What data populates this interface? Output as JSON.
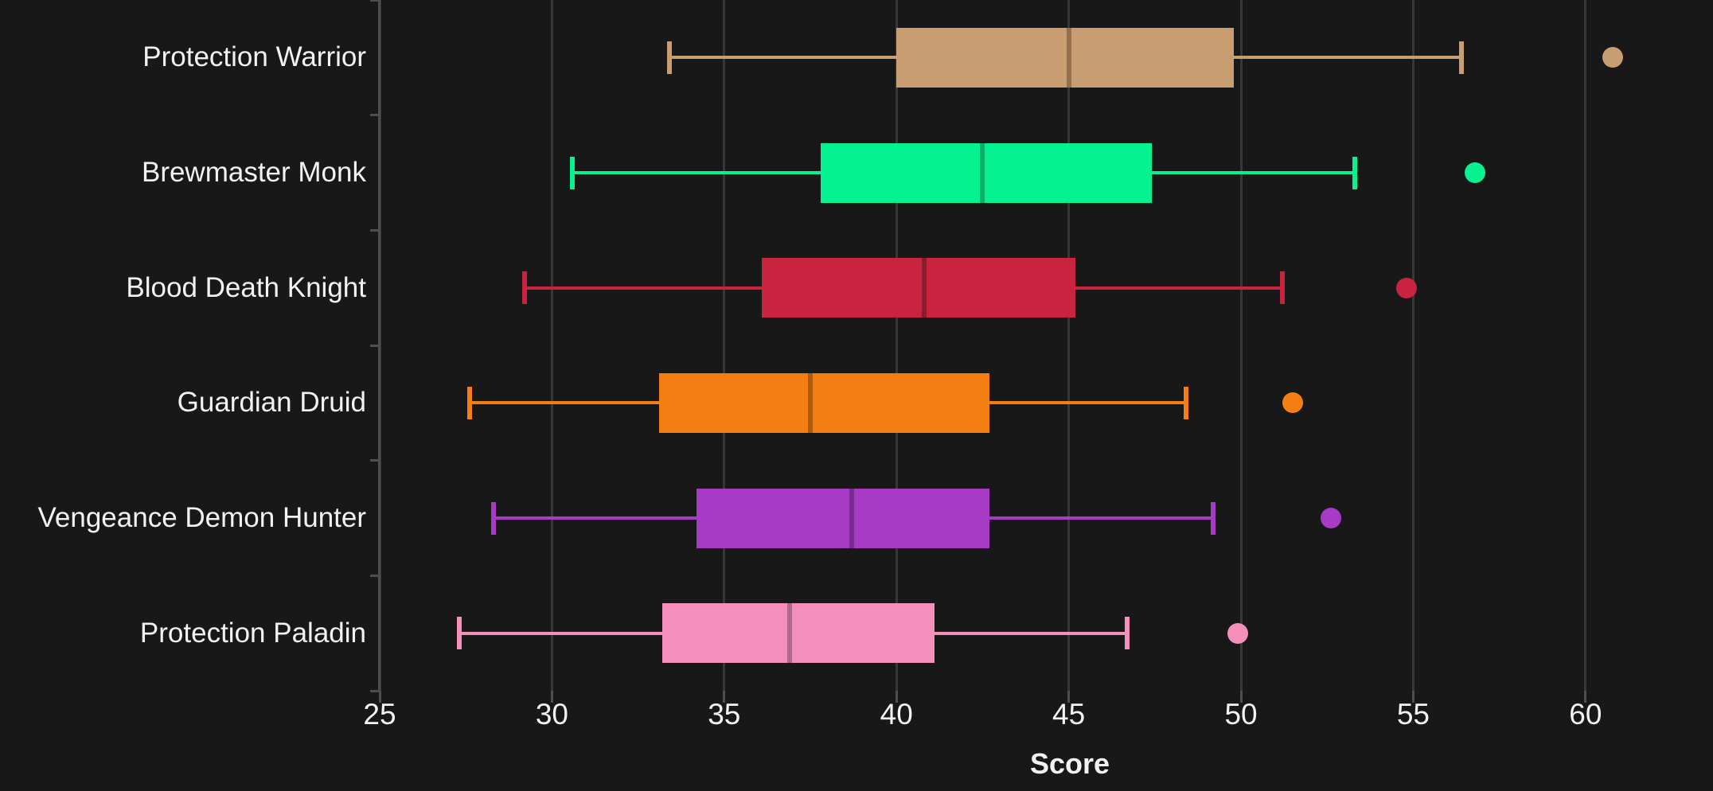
{
  "chart_data": {
    "type": "boxplot",
    "orientation": "horizontal",
    "title": "",
    "xlabel": "Score",
    "ylabel": "",
    "x_ticks": [
      25,
      30,
      35,
      40,
      45,
      50,
      55,
      60
    ],
    "xlim": [
      25,
      63.7
    ],
    "grid": true,
    "legend": "none",
    "categories": [
      "Protection Warrior",
      "Brewmaster Monk",
      "Blood Death Knight",
      "Guardian Druid",
      "Vengeance Demon Hunter",
      "Protection Paladin"
    ],
    "series": [
      {
        "label": "Protection Warrior",
        "color": "#C99D72",
        "median_color": "#93704E",
        "whisker_low": 33.4,
        "q1": 40.0,
        "median": 45.0,
        "q3": 49.8,
        "whisker_high": 56.4,
        "outliers": [
          60.8
        ]
      },
      {
        "label": "Brewmaster Monk",
        "color": "#06F291",
        "median_color": "#0CAE68",
        "whisker_low": 30.6,
        "q1": 37.8,
        "median": 42.5,
        "q3": 47.4,
        "whisker_high": 53.3,
        "outliers": [
          56.8
        ]
      },
      {
        "label": "Blood Death Knight",
        "color": "#C8243F",
        "median_color": "#8E1A2D",
        "whisker_low": 29.2,
        "q1": 36.1,
        "median": 40.8,
        "q3": 45.2,
        "whisker_high": 51.2,
        "outliers": [
          54.8
        ]
      },
      {
        "label": "Guardian Druid",
        "color": "#F57E13",
        "median_color": "#B05A0D",
        "whisker_low": 27.6,
        "q1": 33.1,
        "median": 37.5,
        "q3": 42.7,
        "whisker_high": 48.4,
        "outliers": [
          51.5
        ]
      },
      {
        "label": "Vengeance Demon Hunter",
        "color": "#A73BC6",
        "median_color": "#782B90",
        "whisker_low": 28.3,
        "q1": 34.2,
        "median": 38.7,
        "q3": 42.7,
        "whisker_high": 49.2,
        "outliers": [
          52.6
        ]
      },
      {
        "label": "Protection Paladin",
        "color": "#F48FBC",
        "median_color": "#B2688A",
        "whisker_low": 27.3,
        "q1": 33.2,
        "median": 36.9,
        "q3": 41.1,
        "whisker_high": 46.7,
        "outliers": [
          49.9
        ]
      }
    ],
    "colors": {
      "background": "#181818",
      "gridline": "#373737",
      "axis": "#4E4E4E",
      "text": "#F2F2F2"
    }
  }
}
